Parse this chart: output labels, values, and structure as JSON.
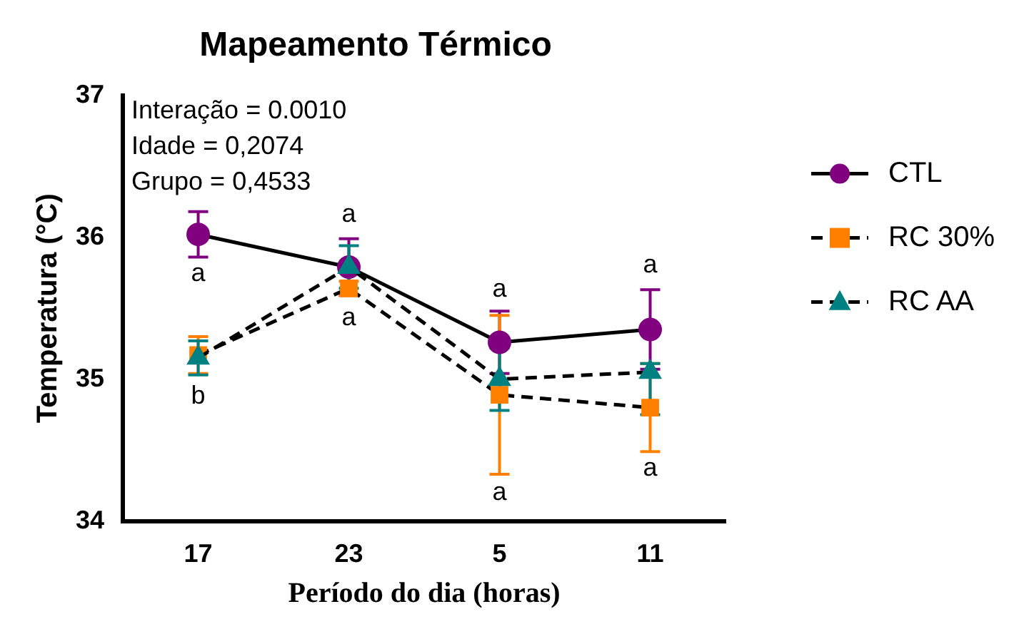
{
  "chart_data": {
    "type": "line",
    "title": "Mapeamento Térmico",
    "xlabel": "Período do dia (horas)",
    "ylabel": "Temperatura (°C)",
    "categories": [
      "17",
      "23",
      "5",
      "11"
    ],
    "series": [
      {
        "name": "CTL",
        "color": "#800080",
        "marker": "circle",
        "line_style": "solid",
        "values": [
          36.02,
          35.79,
          35.26,
          35.35
        ],
        "errors": [
          0.16,
          0.2,
          0.22,
          0.28
        ]
      },
      {
        "name": "RC 30%",
        "color": "#ff8000",
        "marker": "square",
        "line_style": "dashed",
        "values": [
          35.17,
          35.64,
          34.89,
          34.8
        ],
        "errors": [
          0.13,
          0.05,
          0.56,
          0.31
        ]
      },
      {
        "name": "RC AA",
        "color": "#008080",
        "marker": "triangle",
        "line_style": "dashed",
        "values": [
          35.15,
          35.79,
          35.0,
          35.05
        ],
        "errors": [
          0.12,
          0.15,
          0.22,
          [
            34.75,
            35.11
          ]
        ]
      }
    ],
    "ylim": [
      34,
      37
    ],
    "yticks": [
      34,
      35,
      36,
      37
    ],
    "grid": false,
    "legend": "right",
    "annotations": [
      "Interação = 0.0010",
      "Idade = 0,2074",
      "Grupo = 0,4533",
      "a",
      "b",
      "a",
      "a",
      "a",
      "a",
      "a",
      "a"
    ]
  }
}
